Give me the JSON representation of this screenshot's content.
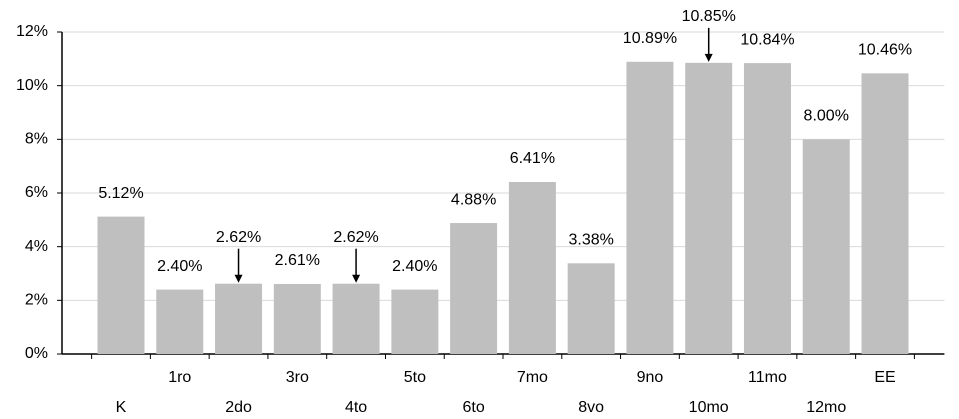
{
  "chart_data": {
    "type": "bar",
    "categories": [
      "K",
      "1ro",
      "2do",
      "3ro",
      "4to",
      "5to",
      "6to",
      "7mo",
      "8vo",
      "9no",
      "10mo",
      "11mo",
      "12mo",
      "EE"
    ],
    "values": [
      5.12,
      2.4,
      2.62,
      2.61,
      2.62,
      2.4,
      4.88,
      6.41,
      3.38,
      10.89,
      10.85,
      10.84,
      8.0,
      10.46
    ],
    "value_labels": [
      "5.12%",
      "2.40%",
      "2.62%",
      "2.61%",
      "2.62%",
      "2.40%",
      "4.88%",
      "6.41%",
      "3.38%",
      "10.89%",
      "10.85%",
      "10.84%",
      "8.00%",
      "10.46%"
    ],
    "color": "#bfbfbf",
    "ylim": [
      0,
      12
    ],
    "yticks": [
      {
        "value": 0,
        "label": "0%"
      },
      {
        "value": 2,
        "label": "2%"
      },
      {
        "value": 4,
        "label": "4%"
      },
      {
        "value": 6,
        "label": "6%"
      },
      {
        "value": 8,
        "label": "8%"
      },
      {
        "value": 10,
        "label": "10%"
      },
      {
        "value": 12,
        "label": "12%"
      }
    ],
    "grid": true
  }
}
